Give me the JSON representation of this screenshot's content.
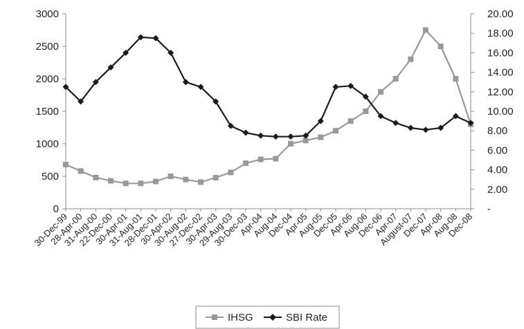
{
  "chart_data": {
    "type": "line",
    "title": "",
    "xlabel": "",
    "ylabel": "",
    "x_tick_labels": [
      "30-Dec-99",
      "28-Apr-00",
      "31-Aug-00",
      "22-Dec-00",
      "30-Apr-01",
      "31-Aug-01",
      "28-Dec-01",
      "30-Apr-02",
      "30-Aug-02",
      "27-Dec-02",
      "30-Apr-03",
      "29-Aug-03",
      "30-Dec-03",
      "Apr-04",
      "Aug-04",
      "Dec-04",
      "Apr-05",
      "Aug-05",
      "Dec-05",
      "Apr-06",
      "Aug-06",
      "Dec-06",
      "Apr-07",
      "August-07",
      "Dec-07",
      "Apr-08",
      "Aug-08",
      "Dec-08"
    ],
    "left_axis": {
      "ylim": [
        0,
        3000
      ],
      "ticks": [
        "0",
        "500",
        "1000",
        "1500",
        "2000",
        "2500",
        "3000"
      ]
    },
    "right_axis": {
      "ylim": [
        0,
        20
      ],
      "ticks": [
        "-",
        "2.00",
        "4.00",
        "6.00",
        "8.00",
        "10.00",
        "12.00",
        "14.00",
        "16.00",
        "18.00",
        "20.00"
      ]
    },
    "legend_position": "bottom-center",
    "grid": false,
    "series": [
      {
        "name": "IHSG",
        "axis": "left",
        "color": "#999999",
        "marker": "square",
        "x": [
          "30-Dec-99",
          "28-Apr-00",
          "31-Aug-00",
          "22-Dec-00",
          "30-Apr-01",
          "31-Aug-01",
          "28-Dec-01",
          "30-Apr-02",
          "30-Aug-02",
          "27-Dec-02",
          "30-Apr-03",
          "29-Aug-03",
          "30-Dec-03",
          "Apr-04",
          "Aug-04",
          "Dec-04",
          "Apr-05",
          "Aug-05",
          "Dec-05",
          "Apr-06",
          "Aug-06",
          "Dec-06",
          "Apr-07",
          "August-07",
          "Dec-07",
          "Apr-08",
          "Aug-08",
          "Dec-08"
        ],
        "values": [
          680,
          580,
          480,
          430,
          390,
          390,
          420,
          500,
          450,
          410,
          480,
          560,
          700,
          760,
          770,
          1000,
          1050,
          1100,
          1200,
          1350,
          1500,
          1800,
          2000,
          2300,
          2750,
          2500,
          2000,
          1300
        ]
      },
      {
        "name": "SBI Rate",
        "axis": "right",
        "color": "#1a1a1a",
        "marker": "diamond",
        "x": [
          "30-Dec-99",
          "28-Apr-00",
          "31-Aug-00",
          "22-Dec-00",
          "30-Apr-01",
          "31-Aug-01",
          "28-Dec-01",
          "30-Apr-02",
          "30-Aug-02",
          "27-Dec-02",
          "30-Apr-03",
          "29-Aug-03",
          "30-Dec-03",
          "Apr-04",
          "Aug-04",
          "Dec-04",
          "Apr-05",
          "Aug-05",
          "Dec-05",
          "Apr-06",
          "Aug-06",
          "Dec-06",
          "Apr-07",
          "August-07",
          "Dec-07",
          "Apr-08",
          "Aug-08",
          "Dec-08"
        ],
        "values": [
          12.5,
          11.0,
          13.0,
          14.5,
          16.0,
          17.6,
          17.5,
          16.0,
          13.0,
          12.5,
          11.0,
          8.5,
          7.8,
          7.5,
          7.4,
          7.4,
          7.5,
          9.0,
          12.5,
          12.6,
          11.5,
          9.5,
          8.8,
          8.3,
          8.1,
          8.3,
          9.5,
          8.8
        ]
      }
    ]
  }
}
